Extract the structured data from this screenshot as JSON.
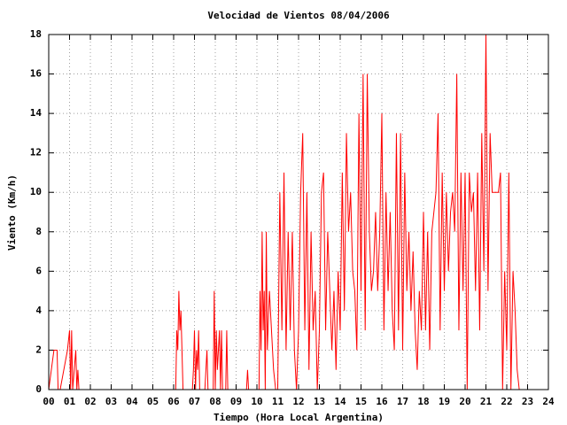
{
  "chart_data": {
    "type": "line",
    "title": "Velocidad de Vientos 08/04/2006",
    "xlabel": "Tiempo (Hora Local Argentina)",
    "ylabel": "Viento (Km/h)",
    "color": "#ff0000",
    "grid": true,
    "xlim": [
      0,
      24
    ],
    "ylim": [
      0,
      18
    ],
    "xticks": [
      {
        "value": 0,
        "label": "00"
      },
      {
        "value": 1,
        "label": "01"
      },
      {
        "value": 2,
        "label": "02"
      },
      {
        "value": 3,
        "label": "03"
      },
      {
        "value": 4,
        "label": "04"
      },
      {
        "value": 5,
        "label": "05"
      },
      {
        "value": 6,
        "label": "06"
      },
      {
        "value": 7,
        "label": "07"
      },
      {
        "value": 8,
        "label": "08"
      },
      {
        "value": 9,
        "label": "09"
      },
      10,
      11,
      12,
      13,
      14,
      15,
      16,
      17,
      18,
      19,
      20,
      21,
      22,
      23,
      24
    ],
    "yticks": [
      0,
      2,
      4,
      6,
      8,
      10,
      12,
      14,
      16,
      18
    ],
    "x": [
      0,
      0.25,
      0.3,
      0.4,
      0.45,
      0.55,
      0.9,
      1.0,
      1.05,
      1.1,
      1.15,
      1.3,
      1.35,
      1.4,
      1.45,
      6.1,
      6.15,
      6.2,
      6.25,
      6.3,
      6.35,
      6.4,
      6.45,
      6.9,
      6.95,
      7.0,
      7.05,
      7.1,
      7.15,
      7.2,
      7.25,
      7.5,
      7.6,
      7.65,
      7.9,
      7.95,
      8.0,
      8.05,
      8.1,
      8.2,
      8.25,
      8.3,
      8.35,
      8.5,
      8.55,
      8.6,
      9.5,
      9.55,
      9.6,
      10.1,
      10.15,
      10.2,
      10.25,
      10.3,
      10.35,
      10.4,
      10.45,
      10.5,
      10.6,
      10.7,
      10.8,
      10.9,
      11,
      11.1,
      11.2,
      11.3,
      11.4,
      11.5,
      11.6,
      11.7,
      11.8,
      11.9,
      12,
      12.1,
      12.2,
      12.3,
      12.4,
      12.5,
      12.6,
      12.7,
      12.8,
      12.9,
      13,
      13.1,
      13.2,
      13.3,
      13.4,
      13.5,
      13.6,
      13.7,
      13.8,
      13.9,
      14,
      14.1,
      14.2,
      14.3,
      14.4,
      14.5,
      14.6,
      14.7,
      14.8,
      14.9,
      15,
      15.1,
      15.2,
      15.3,
      15.4,
      15.5,
      15.6,
      15.7,
      15.8,
      15.9,
      16,
      16.1,
      16.2,
      16.3,
      16.4,
      16.5,
      16.6,
      16.7,
      16.8,
      16.9,
      17,
      17.1,
      17.2,
      17.3,
      17.4,
      17.5,
      17.6,
      17.7,
      17.8,
      17.9,
      18,
      18.1,
      18.2,
      18.3,
      18.4,
      18.5,
      18.6,
      18.7,
      18.8,
      18.9,
      19,
      19.1,
      19.2,
      19.3,
      19.4,
      19.5,
      19.6,
      19.7,
      19.8,
      19.9,
      20,
      20.1,
      20.2,
      20.3,
      20.4,
      20.5,
      20.6,
      20.7,
      20.8,
      20.9,
      21,
      21.1,
      21.2,
      21.3,
      21.4,
      21.5,
      21.6,
      21.7,
      21.8,
      21.9,
      22,
      22.1,
      22.2,
      22.3,
      22.4,
      22.5,
      22.6
    ],
    "values": [
      0,
      2,
      2,
      2,
      0,
      0,
      2,
      3,
      0,
      3,
      0,
      2,
      0,
      1,
      0,
      0,
      3,
      2,
      5,
      3,
      4,
      2,
      0,
      0,
      1,
      3,
      0,
      2,
      1,
      3,
      0,
      0,
      2,
      0,
      0,
      5,
      0,
      3,
      1,
      3,
      0,
      3,
      0,
      0,
      3,
      0,
      0,
      1,
      0,
      0,
      5,
      2,
      8,
      3,
      5,
      0,
      8,
      2,
      5,
      3,
      1,
      0,
      0,
      10,
      3,
      11,
      2,
      8,
      3,
      8,
      2,
      0,
      3,
      10,
      13,
      3,
      10,
      1,
      8,
      3,
      5,
      0,
      3,
      10,
      11,
      3,
      8,
      5,
      2,
      5,
      1,
      6,
      3,
      11,
      4,
      13,
      8,
      10,
      6,
      5,
      2,
      14,
      5,
      16,
      3,
      16,
      8,
      5,
      6,
      9,
      5,
      8,
      14,
      3,
      10,
      5,
      9,
      4,
      2,
      13,
      3,
      13,
      2,
      11,
      5,
      8,
      4,
      7,
      3,
      1,
      5,
      3,
      9,
      3,
      8,
      2,
      8,
      9,
      10,
      14,
      3,
      11,
      5,
      10,
      6,
      9,
      10,
      8,
      16,
      3,
      11,
      5,
      11,
      0,
      11,
      9,
      10,
      5,
      11,
      3,
      13,
      6,
      18,
      5,
      13,
      10,
      10,
      10,
      10,
      11,
      0,
      6,
      2,
      11,
      0,
      6,
      4,
      1,
      0
    ]
  }
}
